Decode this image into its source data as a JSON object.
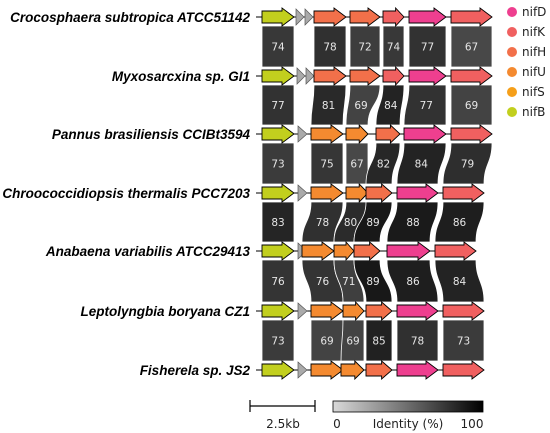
{
  "genes": [
    {
      "name": "nifD",
      "color": "#ee3f8f"
    },
    {
      "name": "nifK",
      "color": "#f06060"
    },
    {
      "name": "nifH",
      "color": "#f2704a"
    },
    {
      "name": "nifU",
      "color": "#f48a30"
    },
    {
      "name": "nifS",
      "color": "#f59f1a"
    },
    {
      "name": "nifB",
      "color": "#c2cf1e"
    }
  ],
  "linker_color": "#aaaaaa",
  "species": [
    {
      "name": "Crocosphaera subtropica ATCC51142"
    },
    {
      "name": "Myxosarcxina sp. GI1"
    },
    {
      "name": "Pannus brasiliensis CCIBt3594"
    },
    {
      "name": "Chroococcidiopsis thermalis PCC7203"
    },
    {
      "name": "Anabaena variabilis ATCC29413"
    },
    {
      "name": "Leptolyngbia boryana CZ1"
    },
    {
      "name": "Fisherela sp. JS2"
    }
  ],
  "identities": [
    [
      74,
      78,
      72,
      74,
      77,
      67
    ],
    [
      77,
      81,
      69,
      84,
      77,
      69
    ],
    [
      73,
      75,
      67,
      82,
      84,
      79
    ],
    [
      83,
      78,
      80,
      89,
      88,
      86
    ],
    [
      76,
      76,
      71,
      89,
      86,
      84
    ],
    [
      73,
      69,
      69,
      85,
      78,
      73
    ]
  ],
  "scale_bar": {
    "label": "2.5kb"
  },
  "colorbar": {
    "min_label": "0",
    "title": "Identity (%)",
    "max_label": "100",
    "min": 0,
    "max": 100
  }
}
